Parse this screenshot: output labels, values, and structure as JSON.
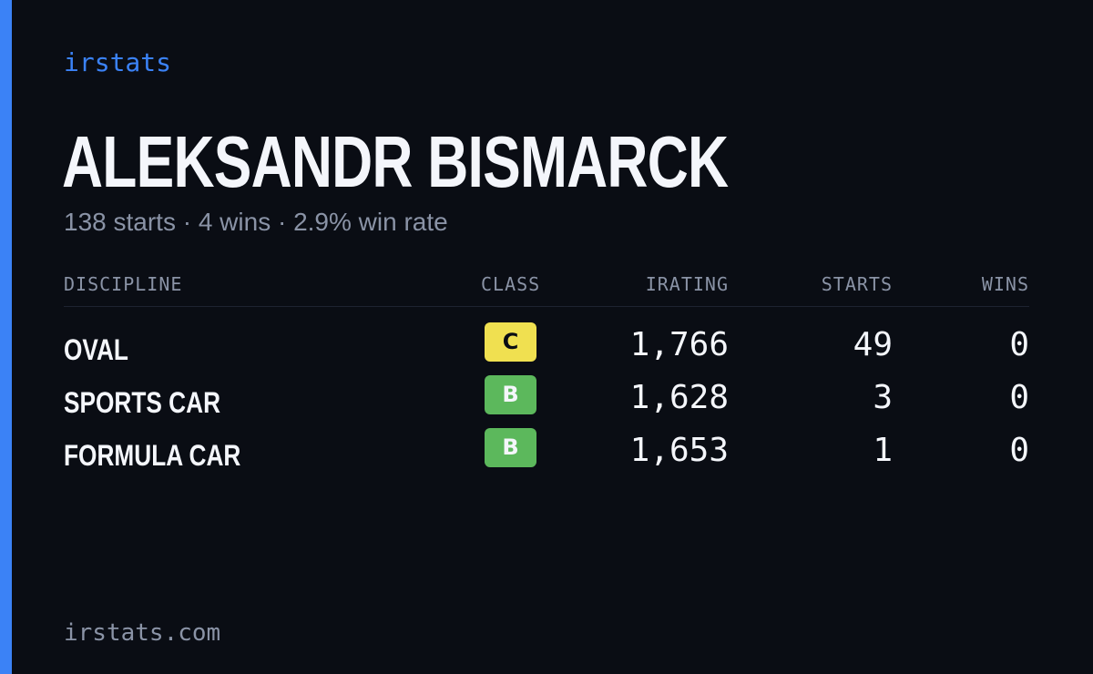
{
  "brand": "irstats",
  "driver": {
    "name": "ALEKSANDR BISMARCK",
    "summary": "138 starts · 4 wins · 2.9% win rate"
  },
  "table": {
    "headers": {
      "discipline": "DISCIPLINE",
      "class": "CLASS",
      "irating": "IRATING",
      "starts": "STARTS",
      "wins": "WINS"
    },
    "rows": [
      {
        "discipline": "OVAL",
        "class": "C",
        "class_color": "#f0e050",
        "irating": "1,766",
        "starts": "49",
        "wins": "0"
      },
      {
        "discipline": "SPORTS CAR",
        "class": "B",
        "class_color": "#5cb85c",
        "irating": "1,628",
        "starts": "3",
        "wins": "0"
      },
      {
        "discipline": "FORMULA CAR",
        "class": "B",
        "class_color": "#5cb85c",
        "irating": "1,653",
        "starts": "1",
        "wins": "0"
      }
    ]
  },
  "footer": "irstats.com",
  "colors": {
    "accent": "#3b82f6",
    "background": "#0a0d14",
    "muted_text": "#8a93a6",
    "primary_text": "#f4f6fb"
  }
}
